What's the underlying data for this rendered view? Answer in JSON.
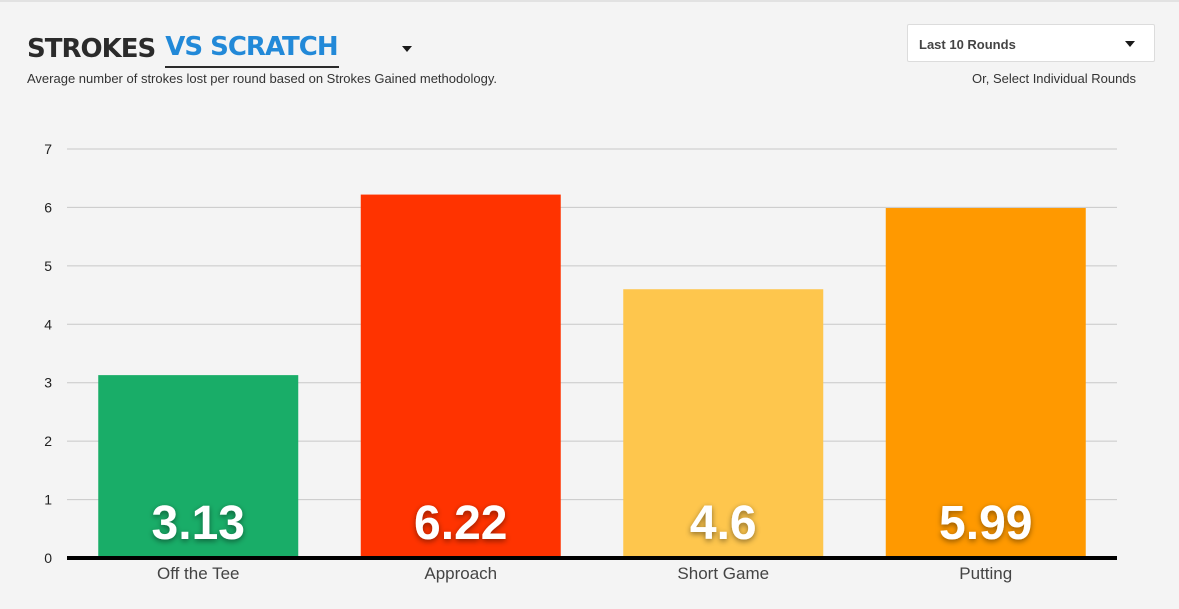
{
  "header": {
    "title": "STROKES",
    "comparison_selected": "VS SCRATCH",
    "subtitle": "Average number of strokes lost per round based on Strokes Gained methodology."
  },
  "rounds": {
    "selected": "Last 10 Rounds",
    "link_label": "Or, Select Individual Rounds"
  },
  "icons": {
    "comparison_dropdown": "caret-down-icon",
    "rounds_dropdown": "caret-down-icon"
  },
  "chart_data": {
    "type": "bar",
    "categories": [
      "Off the Tee",
      "Approach",
      "Short Game",
      "Putting"
    ],
    "values": [
      3.13,
      6.22,
      4.6,
      5.99
    ],
    "value_labels": [
      "3.13",
      "6.22",
      "4.6",
      "5.99"
    ],
    "colors": [
      "#19ad68",
      "#ff3300",
      "#fec64d",
      "#ff9900"
    ],
    "ylim": [
      0,
      7
    ],
    "yticks": [
      0,
      1,
      2,
      3,
      4,
      5,
      6,
      7
    ],
    "grid": true,
    "title": "",
    "xlabel": "",
    "ylabel": ""
  }
}
